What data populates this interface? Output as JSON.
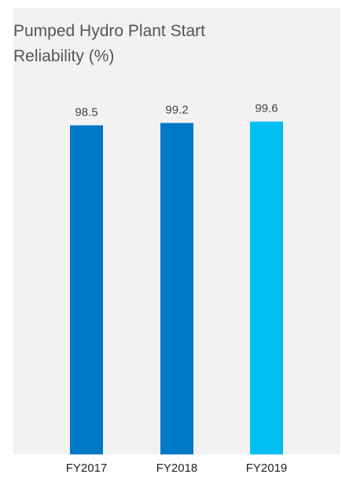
{
  "chart_data": {
    "type": "bar",
    "title": "Pumped Hydro Plant Start Reliability (%)",
    "categories": [
      "FY2017",
      "FY2018",
      "FY2019"
    ],
    "values": [
      98.5,
      99.2,
      99.6
    ],
    "value_labels": [
      "98.5",
      "99.2",
      "99.6"
    ],
    "colors": [
      "#0078c8",
      "#0078c8",
      "#00bff3"
    ],
    "xlabel": "",
    "ylabel": "",
    "grid": false,
    "legend": "none"
  }
}
